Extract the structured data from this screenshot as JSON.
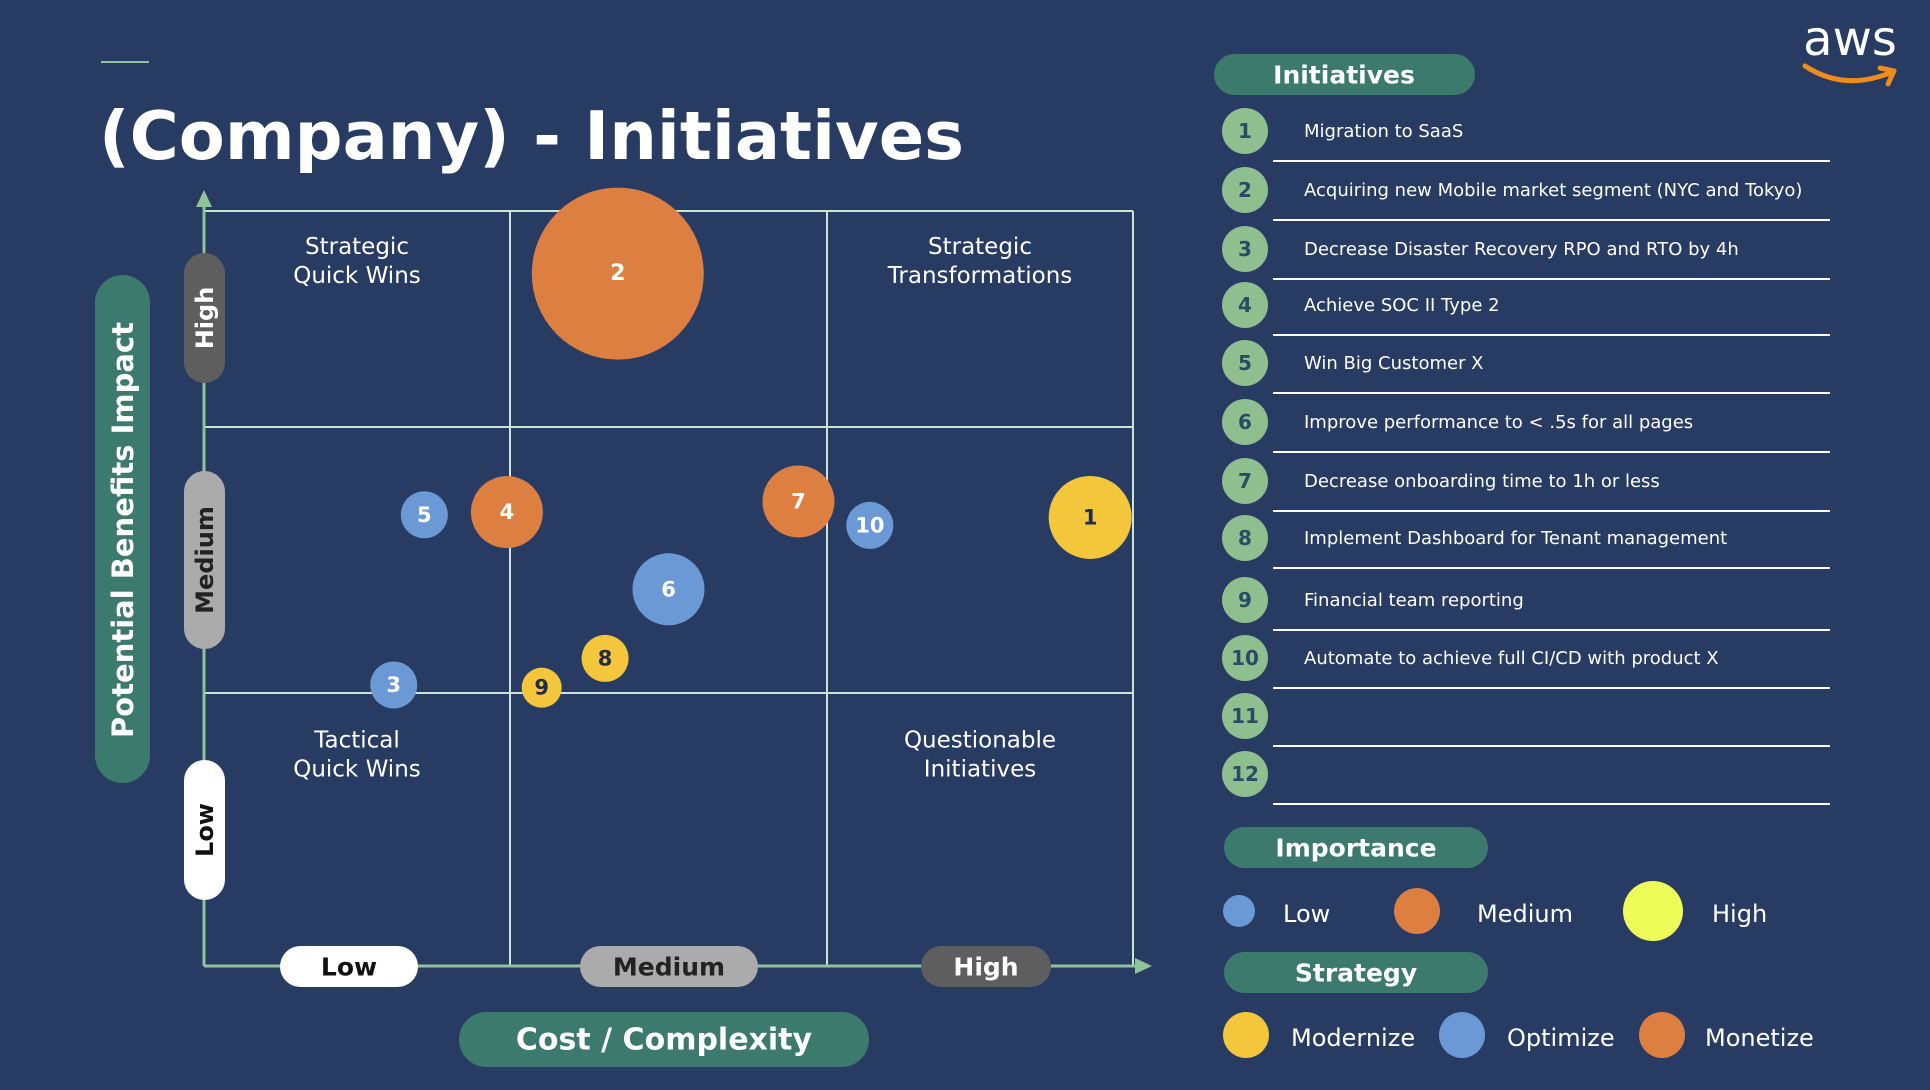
{
  "title": "(Company) - Initiatives",
  "logo": {
    "text": "aws"
  },
  "colors": {
    "background": "#283b63",
    "grid": "#cde3d6",
    "axis": "#8fc49a",
    "pill_green": "#3d7a6e",
    "number_circle": "#8fbf8e",
    "low_blue": "#6b99d6",
    "medium_orange": "#de7f42",
    "high_yellow": "#f4c63b",
    "legend_high": "#eefc5a",
    "pill_low": "#ffffff",
    "pill_medium": "#ababab",
    "pill_high": "#5e5e5e"
  },
  "chart_data": {
    "type": "scatter",
    "title": "(Company) - Initiatives",
    "xlabel": "Cost / Complexity",
    "ylabel": "Potential Benefits Impact",
    "x_categories": [
      "Low",
      "Medium",
      "High"
    ],
    "y_categories": [
      "Low",
      "Medium",
      "High"
    ],
    "xlim": [
      0,
      3
    ],
    "ylim": [
      0,
      3
    ],
    "quadrant_labels": [
      {
        "text": [
          "Strategic",
          "Quick Wins"
        ],
        "x": 0.5,
        "y": 2.8
      },
      {
        "text": [
          "Strategic",
          "Transformations"
        ],
        "x": 2.5,
        "y": 2.8
      },
      {
        "text": [
          "Tactical",
          "Quick Wins"
        ],
        "x": 0.5,
        "y": 0.8
      },
      {
        "text": [
          "Questionable",
          "Initiatives"
        ],
        "x": 2.5,
        "y": 0.8
      }
    ],
    "points": [
      {
        "id": "1",
        "x": 2.86,
        "y": 1.66,
        "size": "medium",
        "color": "yellow"
      },
      {
        "id": "2",
        "x": 1.34,
        "y": 2.71,
        "size": "large",
        "color": "orange"
      },
      {
        "id": "3",
        "x": 0.62,
        "y": 1.03,
        "size": "small",
        "color": "blue"
      },
      {
        "id": "4",
        "x": 0.99,
        "y": 1.68,
        "size": "medium_small",
        "color": "orange"
      },
      {
        "id": "5",
        "x": 0.72,
        "y": 1.67,
        "size": "small",
        "color": "blue"
      },
      {
        "id": "6",
        "x": 1.5,
        "y": 1.39,
        "size": "medium_small",
        "color": "blue"
      },
      {
        "id": "7",
        "x": 1.91,
        "y": 1.72,
        "size": "medium_small",
        "color": "orange"
      },
      {
        "id": "8",
        "x": 1.3,
        "y": 1.13,
        "size": "small",
        "color": "yellow"
      },
      {
        "id": "9",
        "x": 1.1,
        "y": 1.02,
        "size": "tiny",
        "color": "yellow"
      },
      {
        "id": "10",
        "x": 2.14,
        "y": 1.63,
        "size": "small",
        "color": "blue"
      }
    ],
    "grid": true
  },
  "initiatives": {
    "header": "Initiatives",
    "items": [
      {
        "num": "1",
        "text": "Migration to SaaS"
      },
      {
        "num": "2",
        "text": "Acquiring new Mobile market segment (NYC and Tokyo)"
      },
      {
        "num": "3",
        "text": "Decrease Disaster Recovery RPO and RTO by 4h"
      },
      {
        "num": "4",
        "text": "Achieve SOC II Type 2"
      },
      {
        "num": "5",
        "text": "Win Big Customer X"
      },
      {
        "num": "6",
        "text": "Improve performance to < .5s for all pages"
      },
      {
        "num": "7",
        "text": "Decrease onboarding time to 1h or less"
      },
      {
        "num": "8",
        "text": "Implement Dashboard for Tenant management"
      },
      {
        "num": "9",
        "text": "Financial team reporting"
      },
      {
        "num": "10",
        "text": "Automate to achieve full CI/CD with product X"
      },
      {
        "num": "11",
        "text": ""
      },
      {
        "num": "12",
        "text": ""
      }
    ]
  },
  "importance": {
    "header": "Importance",
    "items": [
      {
        "label": "Low",
        "color_key": "low_blue",
        "size": "small"
      },
      {
        "label": "Medium",
        "color_key": "medium_orange",
        "size": "medium"
      },
      {
        "label": "High",
        "color_key": "legend_high",
        "size": "large"
      }
    ]
  },
  "strategy": {
    "header": "Strategy",
    "items": [
      {
        "label": "Modernize",
        "color_key": "high_yellow"
      },
      {
        "label": "Optimize",
        "color_key": "low_blue"
      },
      {
        "label": "Monetize",
        "color_key": "medium_orange"
      }
    ]
  }
}
